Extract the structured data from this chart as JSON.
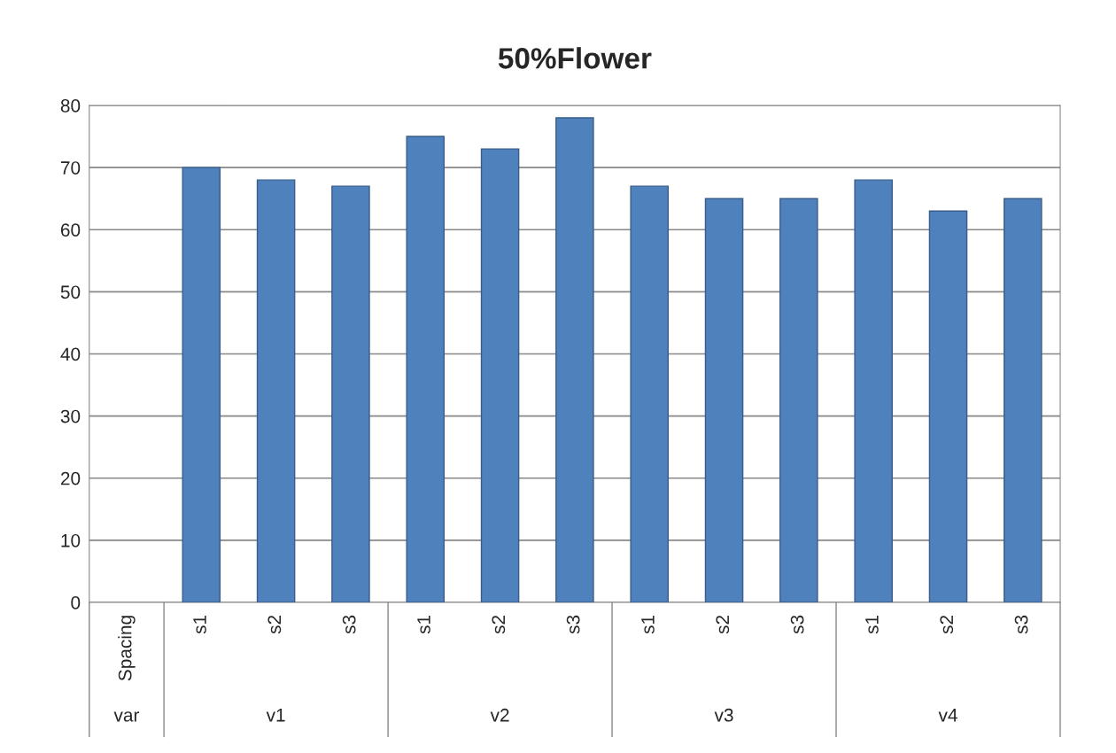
{
  "chart_data": {
    "type": "bar",
    "title": "50%Flower",
    "categories": [
      "Spacing",
      "s1",
      "s2",
      "s3",
      "s1",
      "s2",
      "s3",
      "s1",
      "s2",
      "s3",
      "s1",
      "s2",
      "s3"
    ],
    "values": [
      null,
      70,
      68,
      67,
      75,
      73,
      78,
      67,
      65,
      65,
      68,
      63,
      65
    ],
    "color": "#4f81bd",
    "ylim": [
      0,
      80
    ],
    "yticks": [
      0,
      10,
      20,
      30,
      40,
      50,
      60,
      70,
      80
    ],
    "grid": "y",
    "annotations": [
      "var",
      "v1",
      "v2",
      "v3",
      "v4"
    ]
  }
}
